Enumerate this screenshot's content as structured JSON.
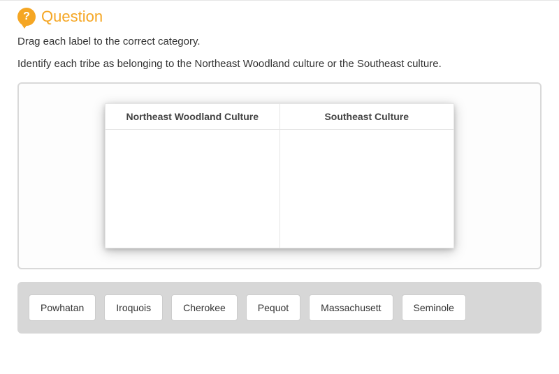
{
  "header": {
    "icon_glyph": "?",
    "title": "Question"
  },
  "instructions": {
    "line1": "Drag each label to the correct category.",
    "line2": "Identify each tribe as belonging to the Northeast Woodland culture or the Southeast culture."
  },
  "table": {
    "columns": [
      "Northeast Woodland Culture",
      "Southeast Culture"
    ]
  },
  "labels": [
    "Powhatan",
    "Iroquois",
    "Cherokee",
    "Pequot",
    "Massachusett",
    "Seminole"
  ],
  "styles": {
    "accent_color": "#f5a623",
    "tray_background": "#d7d7d7",
    "border_color": "#d9d9d9",
    "chip_background": "#ffffff",
    "chip_border": "#cccccc",
    "text_color": "#333333",
    "table_header_color": "#444444"
  }
}
